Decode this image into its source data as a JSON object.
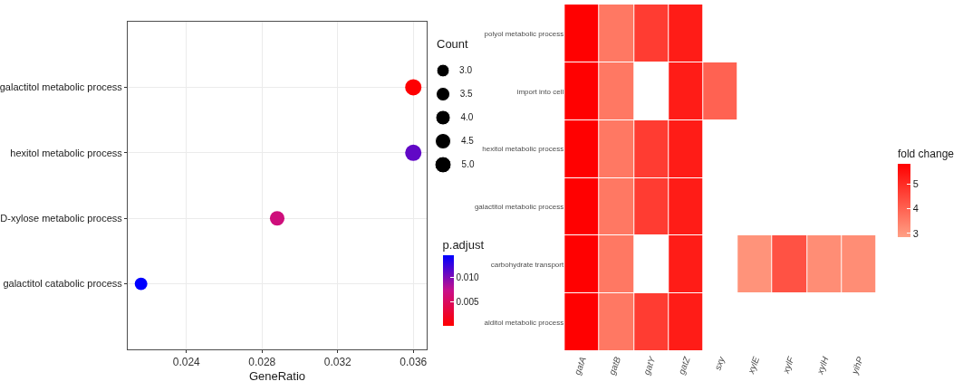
{
  "chart_data": [
    {
      "type": "bubble",
      "orientation": "horizontal",
      "categories": [
        "galactitol metabolic process",
        "hexitol metabolic process",
        "D-xylose metabolic process",
        "galactitol catabolic process"
      ],
      "values": [
        0.036,
        0.036,
        0.0288,
        0.0216
      ],
      "sizes": [
        5,
        5,
        4,
        3
      ],
      "size_legend": [
        {
          "value": 3,
          "label": "3.0"
        },
        {
          "value": 3.5,
          "label": "3.5"
        },
        {
          "value": 4,
          "label": "4.0"
        },
        {
          "value": 4.5,
          "label": "4.5"
        },
        {
          "value": 5,
          "label": "5.0"
        }
      ],
      "cvalues": [
        0.0002,
        0.011,
        0.0065,
        0.0145
      ],
      "clim": [
        0.0001,
        0.0145
      ],
      "cticks": [
        0.005,
        {
          "value": 0.01,
          "label": "0.010"
        }
      ],
      "xlabel": "GeneRatio",
      "legend_title": "Count",
      "clabel": "p.adjust",
      "xlim": [
        0.0209,
        0.0367
      ],
      "xticks": [
        0.024,
        0.028,
        0.032,
        0.036
      ],
      "grid": true,
      "marker": "circle"
    },
    {
      "type": "heatmap",
      "categories": [
        "gatA",
        "gatB",
        "gatY",
        "gatZ",
        "sxy",
        "xylE",
        "xylF",
        "xylH",
        "yihP"
      ],
      "y_categories": [
        "polyol metabolic process",
        "import into cell",
        "hexitol metabolic process",
        "galactitol metabolic process",
        "carbohydrate transport",
        "alditol metabolic process"
      ],
      "cells": [
        [
          5.8,
          3.6,
          4.7,
          5.3,
          null,
          null,
          null,
          null,
          null
        ],
        [
          5.8,
          3.6,
          null,
          5.3,
          4.0,
          null,
          null,
          null,
          null
        ],
        [
          5.8,
          3.6,
          4.7,
          5.3,
          null,
          null,
          null,
          null,
          null
        ],
        [
          5.8,
          3.6,
          4.7,
          5.3,
          null,
          null,
          null,
          null,
          null
        ],
        [
          5.8,
          3.6,
          null,
          5.3,
          null,
          3.1,
          4.3,
          3.2,
          3.2
        ],
        [
          5.8,
          3.6,
          4.7,
          5.3,
          null,
          null,
          null,
          null,
          null
        ]
      ],
      "clim": [
        2.85,
        5.82
      ],
      "cticks": [
        3,
        4,
        5
      ],
      "clabel": "fold change"
    }
  ]
}
